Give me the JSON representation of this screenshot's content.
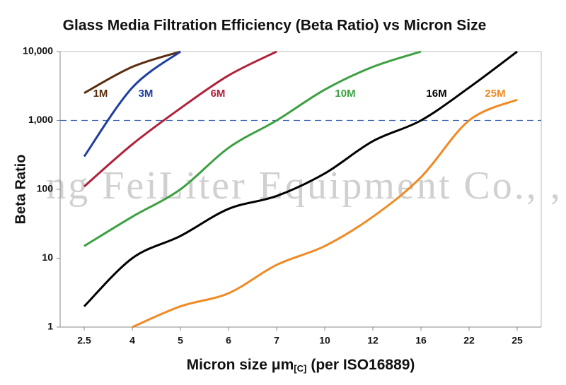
{
  "chart_data": {
    "type": "line",
    "title": "Glass Media Filtration Efficiency (Beta Ratio) vs Micron Size",
    "x_label": "Micron size μm",
    "x_label_sub": "[C]",
    "x_label_suffix": "(per ISO16889)",
    "y_label": "Beta Ratio",
    "watermark": "ng FeiLiter Equipment Co., ,",
    "categories": [
      "2.5",
      "4",
      "5",
      "6",
      "7",
      "10",
      "12",
      "16",
      "22",
      "25"
    ],
    "log_y": true,
    "ylim": [
      1,
      10000
    ],
    "yticks": [
      1,
      10,
      100,
      {
        "value": 1000,
        "label": "1,000"
      },
      {
        "value": 10000,
        "label": "10,000"
      }
    ],
    "reference_line": {
      "value": 1000,
      "color": "#3b62b5"
    },
    "series": [
      {
        "name": "1M",
        "color": "#5b2c0e",
        "values": [
          2500,
          6000,
          10000,
          null,
          null,
          null,
          null,
          null,
          null,
          null
        ]
      },
      {
        "name": "3M",
        "color": "#1f3f9f",
        "values": [
          300,
          3000,
          10000,
          null,
          null,
          null,
          null,
          null,
          null,
          null
        ]
      },
      {
        "name": "6M",
        "color": "#b0213a",
        "values": [
          110,
          450,
          1500,
          4500,
          10000,
          null,
          null,
          null,
          null,
          null
        ]
      },
      {
        "name": "10M",
        "color": "#3ca041",
        "values": [
          15,
          40,
          100,
          400,
          1000,
          2800,
          6000,
          10000,
          null,
          null
        ]
      },
      {
        "name": "16M",
        "color": "#000000",
        "values": [
          2,
          10,
          21,
          52,
          80,
          170,
          500,
          1000,
          3000,
          10000
        ]
      },
      {
        "name": "25M",
        "color": "#f08a24",
        "values": [
          null,
          1,
          2,
          3.1,
          8,
          15,
          40,
          150,
          1000,
          2000
        ]
      }
    ]
  }
}
